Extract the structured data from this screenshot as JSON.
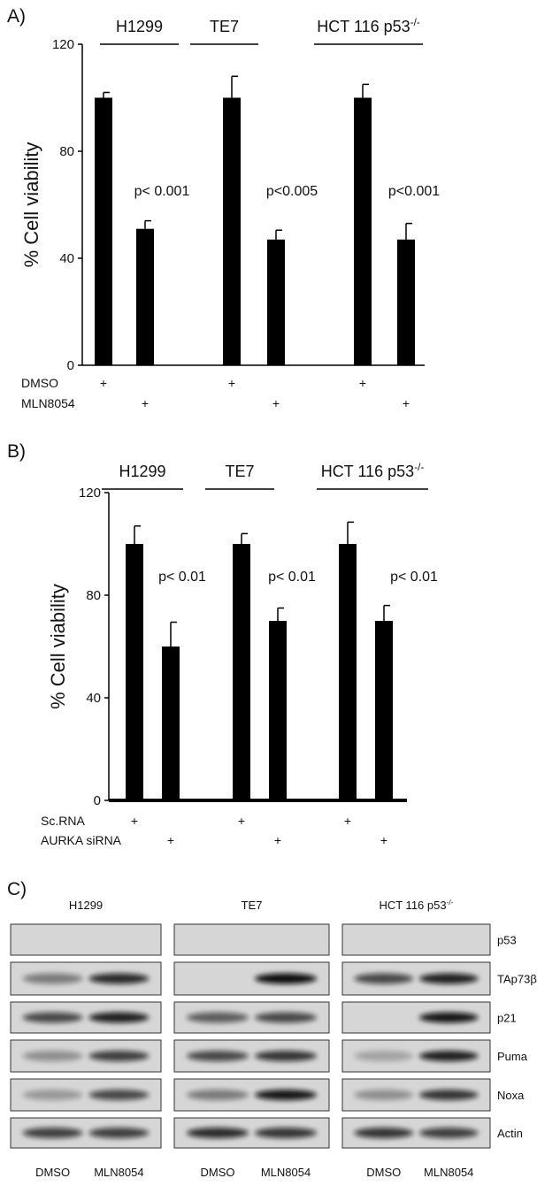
{
  "chart_data": [
    {
      "type": "bar",
      "panel": "A)",
      "ylabel": "% Cell viability",
      "ylim": [
        0,
        120
      ],
      "yticks": [
        0,
        40,
        80,
        120
      ],
      "color": "#000000",
      "groups": [
        {
          "label": "H1299"
        },
        {
          "label": "TE7"
        },
        {
          "label": "HCT 116 p53",
          "sup": "-/-"
        }
      ],
      "values": [
        100,
        51,
        100,
        47,
        100,
        47
      ],
      "errors": [
        2,
        3,
        8,
        3.5,
        5,
        6
      ],
      "pvalues": [
        "p< 0.001",
        "p<0.005",
        "p<0.001"
      ],
      "rows": [
        {
          "label": "DMSO",
          "marks": [
            "+",
            null,
            "+",
            null,
            "+",
            null
          ]
        },
        {
          "label": "MLN8054",
          "marks": [
            null,
            "+",
            null,
            "+",
            null,
            "+"
          ]
        }
      ]
    },
    {
      "type": "bar",
      "panel": "B)",
      "ylabel": "% Cell viability",
      "ylim": [
        0,
        120
      ],
      "yticks": [
        0,
        40,
        80,
        120
      ],
      "color": "#000000",
      "groups": [
        {
          "label": "H1299"
        },
        {
          "label": "TE7"
        },
        {
          "label": "HCT 116 p53",
          "sup": "-/-"
        }
      ],
      "values": [
        100,
        60,
        100,
        70,
        100,
        70
      ],
      "errors": [
        7,
        9.5,
        4,
        5,
        8.5,
        6
      ],
      "pvalues": [
        "p< 0.01",
        "p< 0.01",
        "p< 0.01"
      ],
      "rows": [
        {
          "label": "Sc.RNA",
          "marks": [
            "+",
            null,
            "+",
            null,
            "+",
            null
          ]
        },
        {
          "label": "AURKA siRNA",
          "marks": [
            null,
            "+",
            null,
            "+",
            null,
            "+"
          ]
        }
      ]
    }
  ],
  "blot": {
    "panel": "C)",
    "columns": [
      {
        "label": "H1299"
      },
      {
        "label": "TE7"
      },
      {
        "label": "HCT 116 p53",
        "sup": "-/-"
      }
    ],
    "proteins": [
      "p53",
      "TAp73β",
      "p21",
      "Puma",
      "Noxa",
      "Actin"
    ],
    "lanes": [
      "DMSO",
      "MLN8054"
    ]
  }
}
